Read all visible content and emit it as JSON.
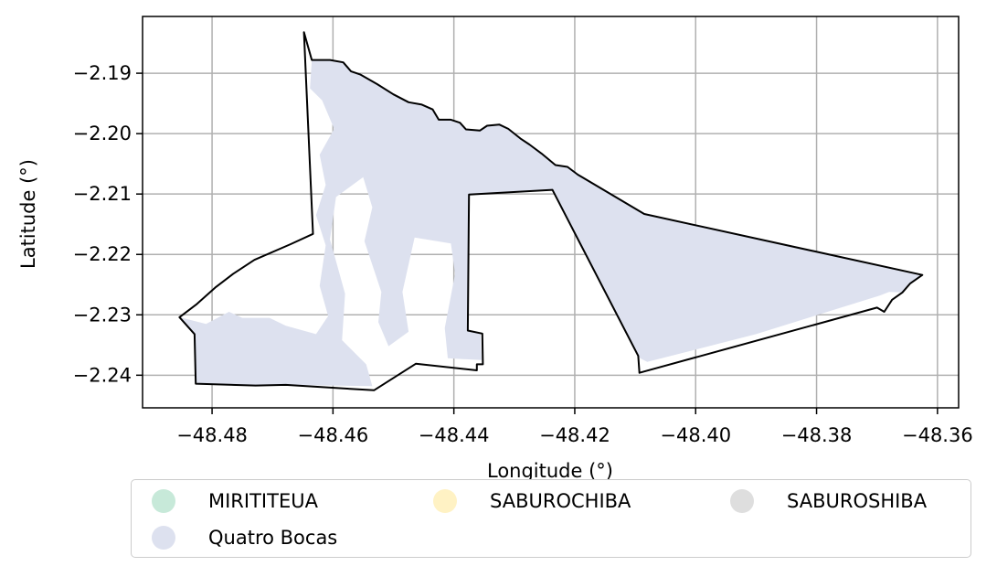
{
  "chart_data": {
    "type": "map",
    "xlabel": "Longitude (°)",
    "ylabel": "Latitude (°)",
    "xlim": [
      -48.4915,
      -48.3565
    ],
    "ylim": [
      -2.2454,
      -2.1806
    ],
    "xticks": [
      -48.48,
      -48.46,
      -48.44,
      -48.42,
      -48.4,
      -48.38,
      -48.36
    ],
    "xtick_labels": [
      "−48.48",
      "−48.46",
      "−48.44",
      "−48.42",
      "−48.40",
      "−48.38",
      "−48.36"
    ],
    "yticks": [
      -2.19,
      -2.2,
      -2.21,
      -2.22,
      -2.23,
      -2.24
    ],
    "ytick_labels": [
      "−2.19",
      "−2.20",
      "−2.21",
      "−2.22",
      "−2.23",
      "−2.24"
    ],
    "grid": true,
    "legend_position": "bottom",
    "legend": [
      {
        "label": "MIRITITEUA",
        "color": "#c7e9d9"
      },
      {
        "label": "SABUROCHIBA",
        "color": "#fff2c4"
      },
      {
        "label": "SABUROSHIBA",
        "color": "#dedede"
      },
      {
        "label": "Quatro Bocas",
        "color": "#dde1ef"
      }
    ],
    "boundary_lonlat": [
      [
        -48.4648,
        -2.1832
      ],
      [
        -48.4635,
        -2.1878
      ],
      [
        -48.4605,
        -2.1878
      ],
      [
        -48.4583,
        -2.1882
      ],
      [
        -48.457,
        -2.1897
      ],
      [
        -48.4555,
        -2.1902
      ],
      [
        -48.4527,
        -2.1918
      ],
      [
        -48.45,
        -2.1935
      ],
      [
        -48.4475,
        -2.1948
      ],
      [
        -48.4453,
        -2.1952
      ],
      [
        -48.4435,
        -2.196
      ],
      [
        -48.4425,
        -2.1977
      ],
      [
        -48.4405,
        -2.1977
      ],
      [
        -48.439,
        -2.1982
      ],
      [
        -48.438,
        -2.1993
      ],
      [
        -48.4357,
        -2.1995
      ],
      [
        -48.4345,
        -2.1987
      ],
      [
        -48.4325,
        -2.1985
      ],
      [
        -48.431,
        -2.1992
      ],
      [
        -48.429,
        -2.2008
      ],
      [
        -48.4275,
        -2.2018
      ],
      [
        -48.4255,
        -2.2033
      ],
      [
        -48.4232,
        -2.2052
      ],
      [
        -48.4212,
        -2.2055
      ],
      [
        -48.4195,
        -2.2068
      ],
      [
        -48.4085,
        -2.2133
      ],
      [
        -48.3625,
        -2.2234
      ],
      [
        -48.3645,
        -2.2248
      ],
      [
        -48.3658,
        -2.2263
      ],
      [
        -48.3675,
        -2.2275
      ],
      [
        -48.3688,
        -2.2295
      ],
      [
        -48.37,
        -2.2288
      ],
      [
        -48.4093,
        -2.2396
      ],
      [
        -48.4095,
        -2.2368
      ],
      [
        -48.4237,
        -2.2093
      ],
      [
        -48.4375,
        -2.2101
      ],
      [
        -48.4377,
        -2.2326
      ],
      [
        -48.4353,
        -2.2331
      ],
      [
        -48.4352,
        -2.2382
      ],
      [
        -48.4362,
        -2.2382
      ],
      [
        -48.4362,
        -2.2392
      ],
      [
        -48.4463,
        -2.2381
      ],
      [
        -48.4532,
        -2.2425
      ],
      [
        -48.4678,
        -2.2416
      ],
      [
        -48.4728,
        -2.2417
      ],
      [
        -48.4827,
        -2.2414
      ],
      [
        -48.4829,
        -2.2332
      ],
      [
        -48.4854,
        -2.2304
      ],
      [
        -48.4825,
        -2.2282
      ],
      [
        -48.4795,
        -2.2255
      ],
      [
        -48.4765,
        -2.2232
      ],
      [
        -48.473,
        -2.2209
      ],
      [
        -48.467,
        -2.2183
      ],
      [
        -48.4633,
        -2.2166
      ],
      [
        -48.4648,
        -2.1832
      ]
    ],
    "fill_lonlat": [
      [
        -48.4635,
        -2.1878
      ],
      [
        -48.4605,
        -2.1878
      ],
      [
        -48.4583,
        -2.1882
      ],
      [
        -48.457,
        -2.1897
      ],
      [
        -48.4555,
        -2.1902
      ],
      [
        -48.4527,
        -2.1918
      ],
      [
        -48.45,
        -2.1935
      ],
      [
        -48.4475,
        -2.1948
      ],
      [
        -48.4453,
        -2.1952
      ],
      [
        -48.4435,
        -2.196
      ],
      [
        -48.4425,
        -2.1977
      ],
      [
        -48.4405,
        -2.1977
      ],
      [
        -48.439,
        -2.1982
      ],
      [
        -48.438,
        -2.1993
      ],
      [
        -48.4357,
        -2.1995
      ],
      [
        -48.4345,
        -2.1987
      ],
      [
        -48.4325,
        -2.1985
      ],
      [
        -48.431,
        -2.1992
      ],
      [
        -48.429,
        -2.2008
      ],
      [
        -48.4275,
        -2.2018
      ],
      [
        -48.4255,
        -2.2033
      ],
      [
        -48.4232,
        -2.2052
      ],
      [
        -48.4212,
        -2.2055
      ],
      [
        -48.4195,
        -2.2068
      ],
      [
        -48.4085,
        -2.2133
      ],
      [
        -48.3625,
        -2.2234
      ],
      [
        -48.3645,
        -2.2248
      ],
      [
        -48.3658,
        -2.2263
      ],
      [
        -48.368,
        -2.2262
      ],
      [
        -48.3695,
        -2.2268
      ],
      [
        -48.39,
        -2.2332
      ],
      [
        -48.408,
        -2.2378
      ],
      [
        -48.4092,
        -2.2372
      ],
      [
        -48.4237,
        -2.2093
      ],
      [
        -48.4375,
        -2.2101
      ],
      [
        -48.4377,
        -2.2326
      ],
      [
        -48.4356,
        -2.233
      ],
      [
        -48.4354,
        -2.2375
      ],
      [
        -48.441,
        -2.2372
      ],
      [
        -48.4415,
        -2.2322
      ],
      [
        -48.4398,
        -2.2232
      ],
      [
        -48.4405,
        -2.2182
      ],
      [
        -48.4465,
        -2.2172
      ],
      [
        -48.4485,
        -2.2262
      ],
      [
        -48.4475,
        -2.2328
      ],
      [
        -48.4508,
        -2.2352
      ],
      [
        -48.4525,
        -2.2312
      ],
      [
        -48.452,
        -2.2262
      ],
      [
        -48.4548,
        -2.2178
      ],
      [
        -48.4535,
        -2.2122
      ],
      [
        -48.455,
        -2.2072
      ],
      [
        -48.4595,
        -2.2105
      ],
      [
        -48.4605,
        -2.2175
      ],
      [
        -48.458,
        -2.2265
      ],
      [
        -48.4585,
        -2.2342
      ],
      [
        -48.4545,
        -2.2382
      ],
      [
        -48.4535,
        -2.2418
      ],
      [
        -48.4678,
        -2.2416
      ],
      [
        -48.4728,
        -2.2417
      ],
      [
        -48.4827,
        -2.2414
      ],
      [
        -48.4829,
        -2.2332
      ],
      [
        -48.4854,
        -2.2304
      ],
      [
        -48.481,
        -2.2315
      ],
      [
        -48.4772,
        -2.2295
      ],
      [
        -48.475,
        -2.2305
      ],
      [
        -48.4705,
        -2.2305
      ],
      [
        -48.4678,
        -2.2318
      ],
      [
        -48.4628,
        -2.2332
      ],
      [
        -48.4608,
        -2.2302
      ],
      [
        -48.4622,
        -2.2252
      ],
      [
        -48.4612,
        -2.2185
      ],
      [
        -48.4628,
        -2.2135
      ],
      [
        -48.4612,
        -2.2085
      ],
      [
        -48.4622,
        -2.2035
      ],
      [
        -48.4598,
        -2.1992
      ],
      [
        -48.4618,
        -2.1945
      ],
      [
        -48.4638,
        -2.1925
      ],
      [
        -48.4635,
        -2.1878
      ]
    ]
  }
}
